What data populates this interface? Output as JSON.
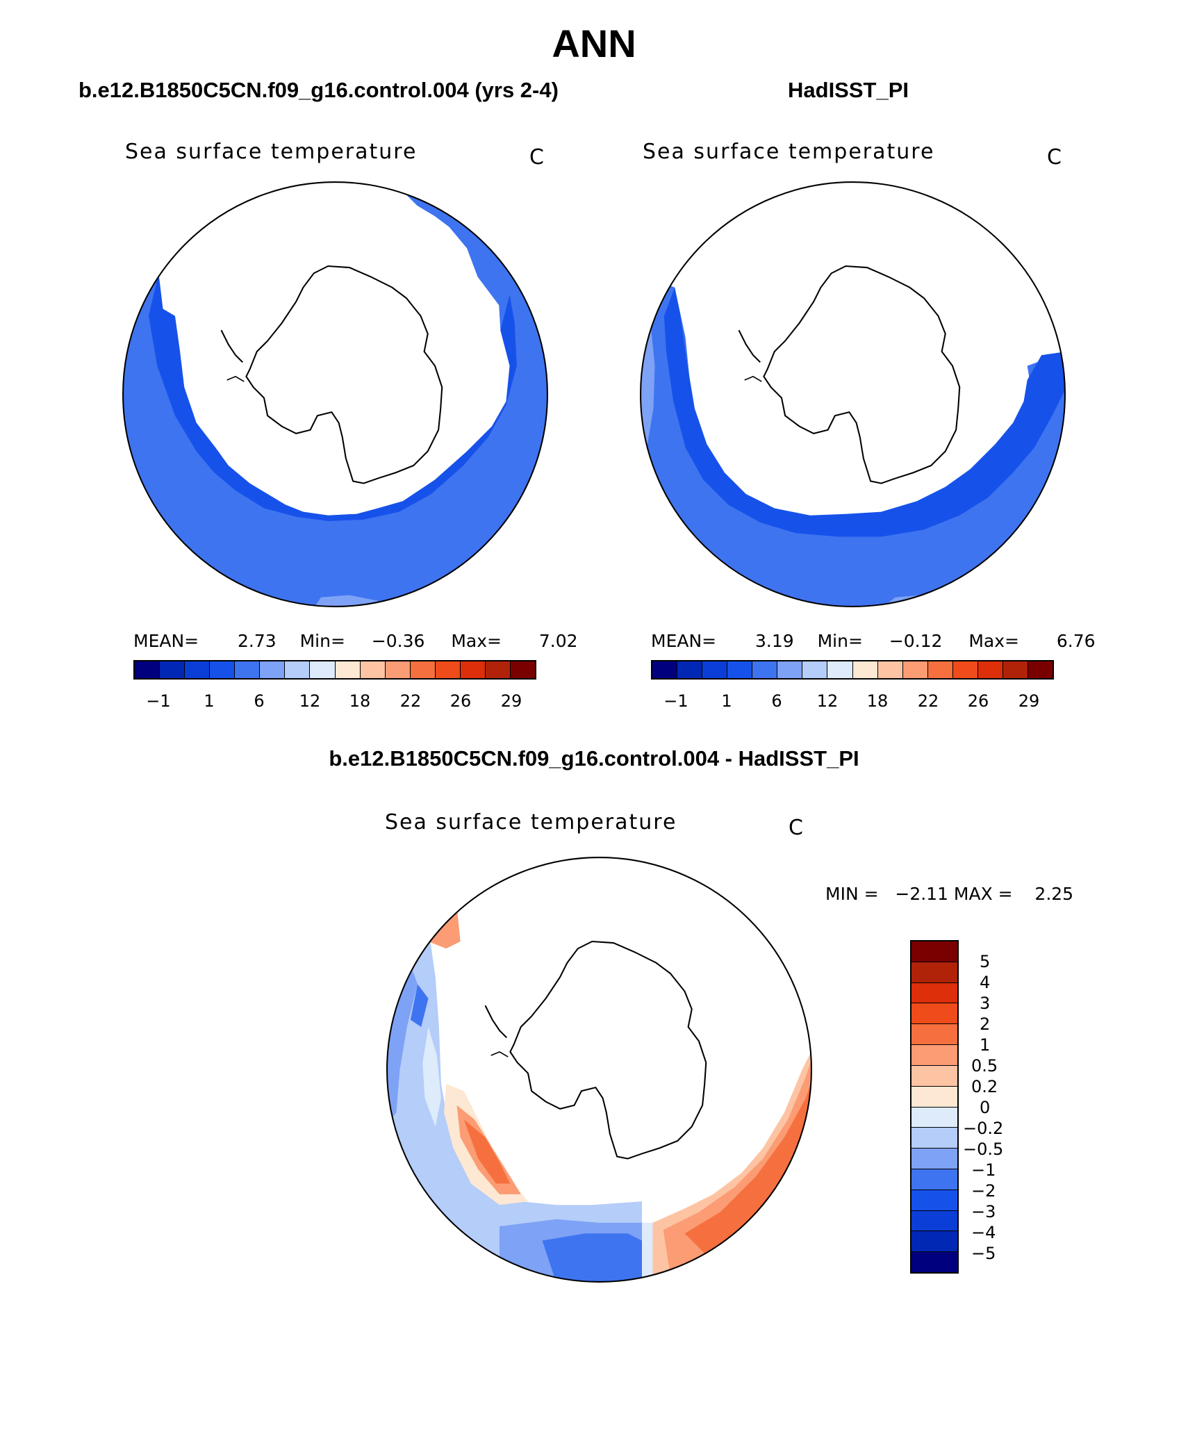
{
  "title": "ANN",
  "panels": [
    {
      "case_title": "b.e12.B1850C5CN.f09_g16.control.004 (yrs 2-4)",
      "variable": "Sea surface temperature",
      "units": "C",
      "stats": {
        "mean_label": "MEAN=",
        "mean": "2.73",
        "min_label": "Min=",
        "min": "−0.36",
        "max_label": "Max=",
        "max": "7.02"
      }
    },
    {
      "case_title": "HadISST_PI",
      "variable": "Sea surface temperature",
      "units": "C",
      "stats": {
        "mean_label": "MEAN=",
        "mean": "3.19",
        "min_label": "Min=",
        "min": "−0.12",
        "max_label": "Max=",
        "max": "6.76"
      }
    }
  ],
  "colorbar_top": {
    "colors": [
      "#00007f",
      "#0028b4",
      "#0a3ed6",
      "#1652ea",
      "#3f74f0",
      "#7ea2f5",
      "#b4cdf9",
      "#ddebfb",
      "#fde8d4",
      "#fdc4a4",
      "#fb9c74",
      "#f6703f",
      "#ef4b1b",
      "#dd2f0a",
      "#b12309",
      "#7a0000"
    ],
    "tick_labels": [
      "−1",
      "1",
      "6",
      "12",
      "18",
      "22",
      "26",
      "29"
    ]
  },
  "diff_panel": {
    "case_title": "b.e12.B1850C5CN.f09_g16.control.004 - HadISST_PI",
    "variable": "Sea surface temperature",
    "units": "C",
    "stats_text": "MIN =   −2.11 MAX =    2.25"
  },
  "colorbar_diff": {
    "colors_top_to_bottom": [
      "#7a0000",
      "#b12309",
      "#dd2f0a",
      "#ef4b1b",
      "#f6703f",
      "#fb9c74",
      "#fdc4a4",
      "#fde8d4",
      "#ddebfb",
      "#b4cdf9",
      "#7ea2f5",
      "#3f74f0",
      "#1652ea",
      "#0a3ed6",
      "#0028b4",
      "#00007f"
    ],
    "tick_labels": [
      "5",
      "4",
      "3",
      "2",
      "1",
      "0.5",
      "0.2",
      "0",
      "−0.2",
      "−0.5",
      "−1",
      "−2",
      "−3",
      "−4",
      "−5"
    ]
  }
}
